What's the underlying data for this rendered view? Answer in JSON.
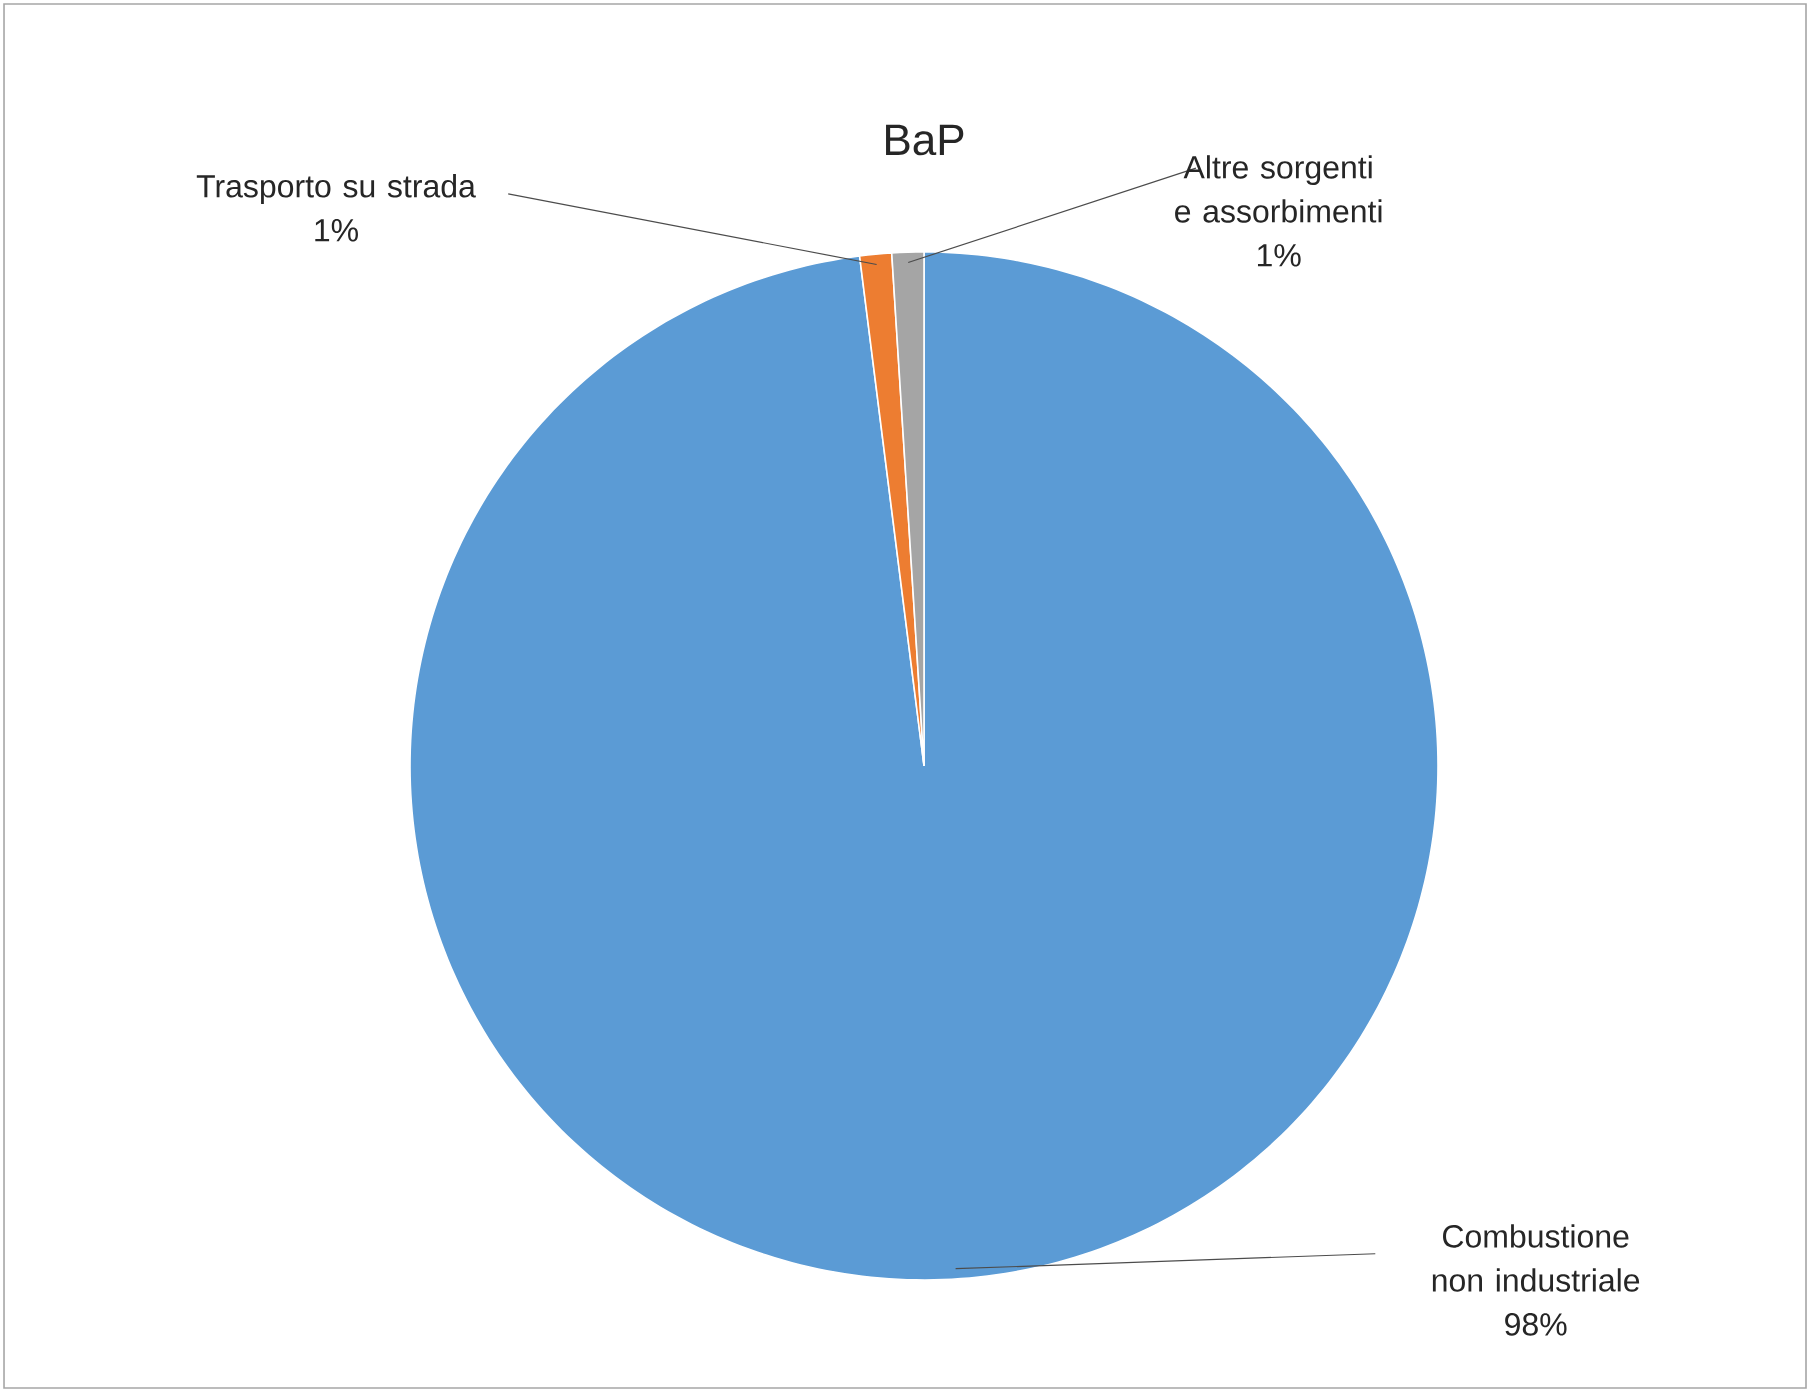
{
  "chart_data": {
    "type": "pie",
    "title": "BaP",
    "categories": [
      "Combustione non industriale",
      "Trasporto su strada",
      "Altre sorgenti e assorbimenti"
    ],
    "values": [
      98,
      1,
      1
    ],
    "colors": [
      "#5b9bd5",
      "#ed7d31",
      "#a5a5a5"
    ],
    "value_labels": [
      "98%",
      "1%",
      "1%"
    ]
  }
}
